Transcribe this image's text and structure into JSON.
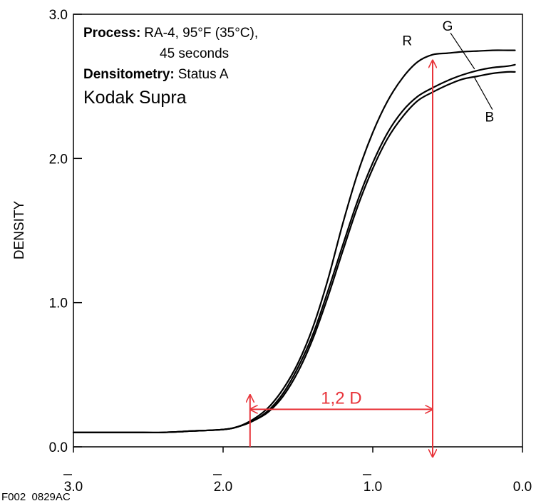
{
  "chart_data": {
    "type": "line",
    "title": "",
    "xlabel": "",
    "ylabel": "DENSITY",
    "xlim": [
      -3.0,
      0.0
    ],
    "ylim": [
      0.0,
      3.0
    ],
    "x_ticks": [
      {
        "value": -3.0,
        "label": "3.0",
        "bar": true
      },
      {
        "value": -2.0,
        "label": "2.0",
        "bar": true
      },
      {
        "value": -1.0,
        "label": "1.0",
        "bar": true
      },
      {
        "value": 0.0,
        "label": "0.0",
        "bar": false
      }
    ],
    "y_ticks": [
      {
        "value": 0.0,
        "label": "0.0"
      },
      {
        "value": 1.0,
        "label": "1.0"
      },
      {
        "value": 2.0,
        "label": "2.0"
      },
      {
        "value": 3.0,
        "label": "3.0"
      }
    ],
    "grid": false,
    "series": [
      {
        "name": "R",
        "color": "#000000",
        "x": [
          -3.0,
          -2.8,
          -2.6,
          -2.4,
          -2.2,
          -2.0,
          -1.9,
          -1.8,
          -1.7,
          -1.6,
          -1.5,
          -1.4,
          -1.3,
          -1.2,
          -1.1,
          -1.0,
          -0.9,
          -0.8,
          -0.7,
          -0.6,
          -0.5,
          -0.4,
          -0.3,
          -0.2,
          -0.1,
          -0.05
        ],
        "y": [
          0.1,
          0.1,
          0.1,
          0.1,
          0.11,
          0.12,
          0.14,
          0.19,
          0.27,
          0.4,
          0.58,
          0.83,
          1.16,
          1.55,
          1.9,
          2.18,
          2.4,
          2.56,
          2.67,
          2.72,
          2.73,
          2.74,
          2.745,
          2.75,
          2.75,
          2.75
        ]
      },
      {
        "name": "G",
        "color": "#000000",
        "x": [
          -3.0,
          -2.8,
          -2.6,
          -2.4,
          -2.2,
          -2.0,
          -1.9,
          -1.8,
          -1.7,
          -1.6,
          -1.5,
          -1.4,
          -1.3,
          -1.2,
          -1.1,
          -1.0,
          -0.9,
          -0.8,
          -0.7,
          -0.6,
          -0.5,
          -0.4,
          -0.3,
          -0.2,
          -0.1,
          -0.05
        ],
        "y": [
          0.1,
          0.1,
          0.1,
          0.1,
          0.11,
          0.12,
          0.14,
          0.18,
          0.25,
          0.37,
          0.55,
          0.78,
          1.08,
          1.4,
          1.71,
          1.97,
          2.18,
          2.33,
          2.43,
          2.49,
          2.54,
          2.58,
          2.61,
          2.63,
          2.64,
          2.65
        ]
      },
      {
        "name": "B",
        "color": "#000000",
        "x": [
          -3.0,
          -2.8,
          -2.6,
          -2.4,
          -2.2,
          -2.0,
          -1.9,
          -1.8,
          -1.7,
          -1.6,
          -1.5,
          -1.4,
          -1.3,
          -1.2,
          -1.1,
          -1.0,
          -0.9,
          -0.8,
          -0.7,
          -0.6,
          -0.5,
          -0.4,
          -0.3,
          -0.2,
          -0.1,
          -0.05
        ],
        "y": [
          0.1,
          0.1,
          0.1,
          0.1,
          0.11,
          0.12,
          0.14,
          0.18,
          0.24,
          0.35,
          0.52,
          0.75,
          1.04,
          1.36,
          1.67,
          1.93,
          2.14,
          2.29,
          2.4,
          2.46,
          2.51,
          2.55,
          2.57,
          2.59,
          2.6,
          2.6
        ]
      }
    ],
    "curve_labels": [
      {
        "text": "R",
        "x": -0.77,
        "y": 2.82
      },
      {
        "text": "G",
        "x": -0.5,
        "y": 2.92,
        "leader_to": {
          "x": -0.32,
          "y": 2.62
        }
      },
      {
        "text": "B",
        "x": -0.22,
        "y": 2.29,
        "leader_to": {
          "x": -0.32,
          "y": 2.56
        }
      }
    ],
    "measurement": {
      "label": "1,2 D",
      "color": "#e8343a",
      "x_start": -1.82,
      "x_end": -0.6,
      "y": 0.26,
      "left_marker_top": 0.36,
      "right_marker_top": 2.68
    },
    "annotations": {
      "process_label": "Process:",
      "process_value": "RA-4, 95°F (35°C),",
      "process_value_line2": "45 seconds",
      "densitometry_label": "Densitometry:",
      "densitometry_value": "Status A",
      "brand": "Kodak Supra"
    },
    "footer_code": "F002_0829AC"
  }
}
